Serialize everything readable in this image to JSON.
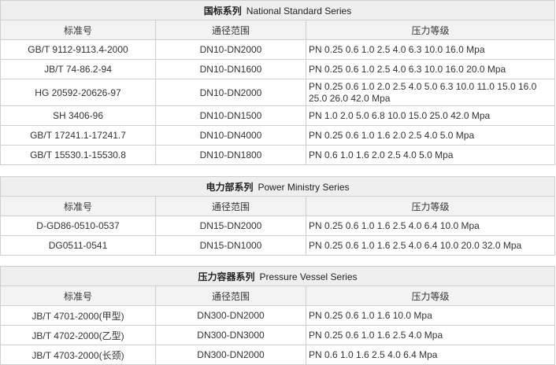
{
  "tables": [
    {
      "title_cn": "国标系列",
      "title_en": "National Standard Series",
      "headers": [
        "标准号",
        "通径范围",
        "压力等级"
      ],
      "rows": [
        [
          "GB/T 9112-9113.4-2000",
          "DN10-DN2000",
          "PN 0.25 0.6 1.0 2.5 4.0 6.3 10.0 16.0 Mpa"
        ],
        [
          "JB/T 74-86.2-94",
          "DN10-DN1600",
          "PN 0.25 0.6 1.0 2.5 4.0 6.3 10.0 16.0 20.0 Mpa"
        ],
        [
          "HG 20592-20626-97",
          "DN10-DN2000",
          "PN 0.25 0.6 1.0 2.0 2.5 4.0 5.0 6.3 10.0 11.0 15.0  16.0 25.0 26.0 42.0 Mpa"
        ],
        [
          "SH 3406-96",
          "DN10-DN1500",
          "PN 1.0 2.0 5.0 6.8 10.0 15.0 25.0 42.0 Mpa"
        ],
        [
          "GB/T 17241.1-17241.7",
          "DN10-DN4000",
          "PN 0.25 0.6 1.0 1.6 2.0 2.5 4.0 5.0 Mpa"
        ],
        [
          "GB/T 15530.1-15530.8",
          "DN10-DN1800",
          "PN 0.6 1.0 1.6 2.0 2.5 4.0 5.0 Mpa"
        ]
      ]
    },
    {
      "title_cn": "电力部系列",
      "title_en": "Power Ministry Series",
      "headers": [
        "标准号",
        "通径范围",
        "压力等级"
      ],
      "rows": [
        [
          "D-GD86-0510-0537",
          "DN15-DN2000",
          "PN 0.25 0.6 1.0 1.6 2.5 4.0 6.4 10.0 Mpa"
        ],
        [
          "DG0511-0541",
          "DN15-DN1000",
          "PN 0.25 0.6 1.0 1.6 2.5 4.0 6.4 10.0 20.0 32.0 Mpa"
        ]
      ]
    },
    {
      "title_cn": "压力容器系列",
      "title_en": "Pressure Vessel Series",
      "headers": [
        "标准号",
        "通径范围",
        "压力等级"
      ],
      "rows": [
        [
          "JB/T 4701-2000(甲型)",
          "DN300-DN2000",
          "PN 0.25 0.6 1.0 1.6 10.0 Mpa"
        ],
        [
          "JB/T 4702-2000(乙型)",
          "DN300-DN3000",
          "PN 0.25 0.6 1.0 1.6 2.5 4.0 Mpa"
        ],
        [
          "JB/T 4703-2000(长颈)",
          "DN300-DN2000",
          "PN 0.6 1.0 1.6 2.5 4.0 6.4 Mpa"
        ]
      ]
    }
  ]
}
